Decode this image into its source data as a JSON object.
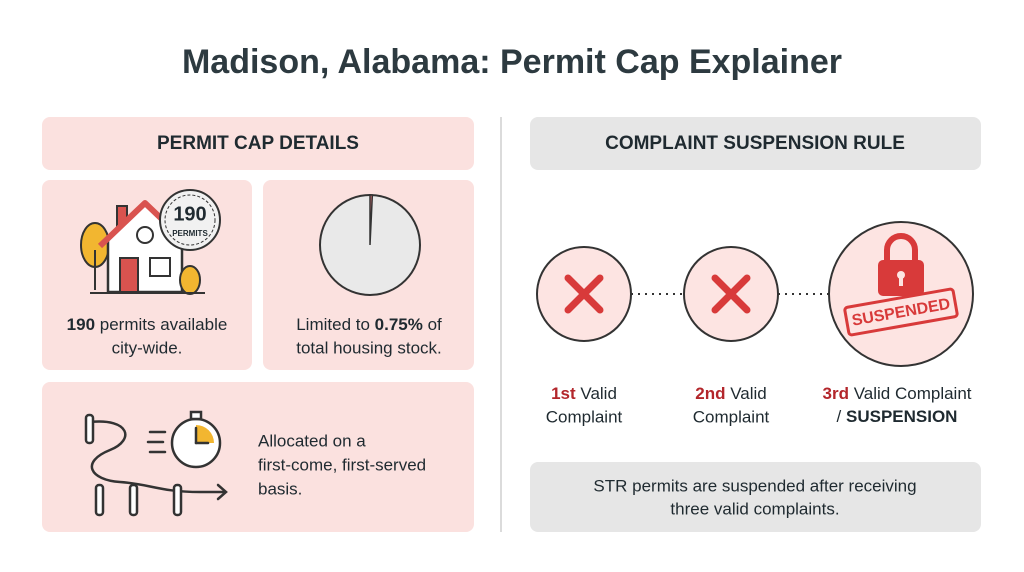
{
  "title": "Madison, Alabama: Permit Cap Explainer",
  "left": {
    "header": "PERMIT CAP DETAILS",
    "permits": {
      "badge_number": "190",
      "badge_label": "PERMITS",
      "text_bold": "190",
      "text_line1": "permits available",
      "text_line2": "city-wide."
    },
    "share": {
      "text_before": "Limited to",
      "text_bold": "0.75%",
      "text_after_line1": "of",
      "text_line2": "total housing stock.",
      "pie_percent": 0.75
    },
    "allocation": {
      "line1": "Allocated on a",
      "line2": "first-come, first-served",
      "line3": "basis."
    }
  },
  "right": {
    "header": "COMPLAINT SUSPENSION RULE",
    "steps": [
      {
        "ordinal": "1st",
        "line1": "Valid",
        "line2": "Complaint"
      },
      {
        "ordinal": "2nd",
        "line1": "Valid",
        "line2": "Complaint"
      },
      {
        "ordinal": "3rd",
        "line1": "Valid Complaint",
        "line2_prefix": "/",
        "line2_bold": "SUSPENSION",
        "stamp": "SUSPENDED"
      }
    ],
    "note": {
      "line1": "STR permits are suspended after receiving",
      "line2": "three valid complaints."
    }
  }
}
